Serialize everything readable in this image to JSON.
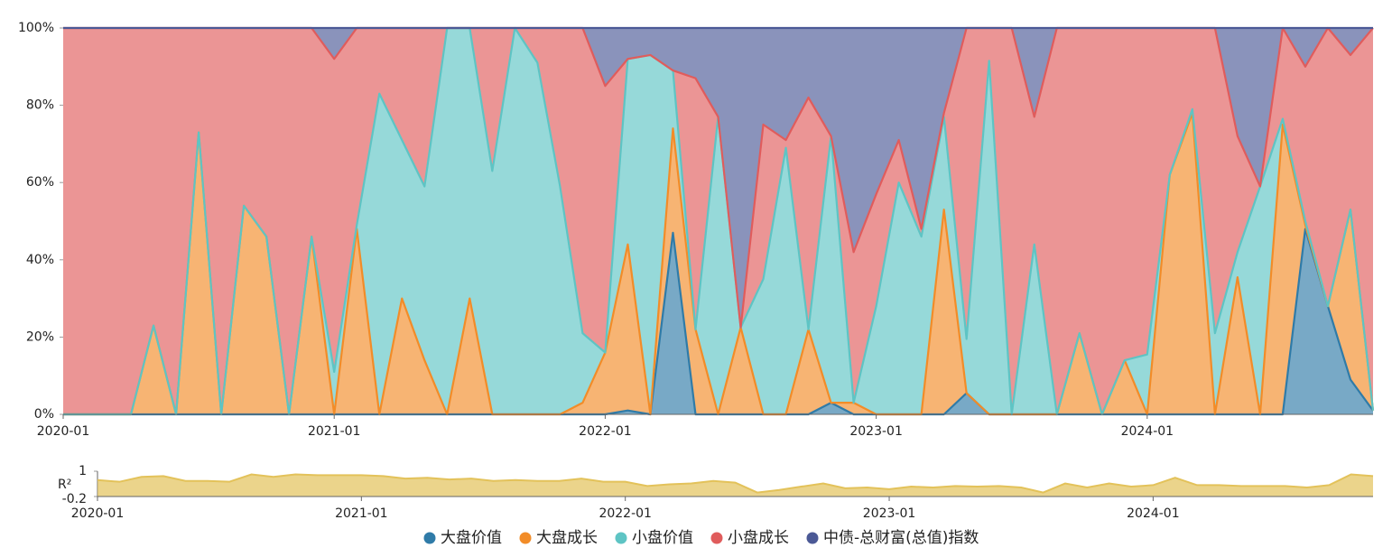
{
  "chart_data": [
    {
      "type": "stacked_area",
      "categories": [
        "2020-01",
        null,
        null,
        null,
        null,
        null,
        null,
        null,
        null,
        null,
        null,
        null,
        "2021-01",
        null,
        null,
        null,
        null,
        null,
        null,
        null,
        null,
        null,
        null,
        null,
        "2022-01",
        null,
        null,
        null,
        null,
        null,
        null,
        null,
        null,
        null,
        null,
        null,
        "2023-01",
        null,
        null,
        null,
        null,
        null,
        null,
        null,
        null,
        null,
        null,
        null,
        "2024-01",
        null,
        null,
        null,
        null,
        null,
        null,
        null,
        null,
        null,
        null
      ],
      "series": [
        {
          "name": "大盘价值",
          "color": "#2f7ba8",
          "values": [
            0,
            0,
            0,
            0,
            0,
            0,
            0,
            0,
            0,
            0,
            0,
            0,
            0,
            0,
            0,
            0,
            0,
            0,
            0,
            0,
            0,
            0,
            0,
            0,
            0,
            1,
            0,
            47,
            0,
            0,
            0,
            0,
            0,
            0,
            3,
            0,
            0,
            0,
            0,
            0,
            5.5,
            0,
            0,
            0,
            0,
            0,
            0,
            0,
            0,
            0,
            0,
            0,
            0,
            0,
            0,
            48,
            28,
            9,
            1
          ]
        },
        {
          "name": "大盘成长",
          "color": "#f28c28",
          "values": [
            0,
            0,
            0,
            0,
            23,
            0,
            73,
            0,
            54,
            46,
            0,
            46,
            0,
            48,
            0,
            30,
            14,
            0,
            30,
            0,
            0,
            0,
            0,
            3,
            16,
            43,
            0,
            27,
            22,
            0,
            22.5,
            0,
            0,
            22,
            0,
            3,
            0,
            0,
            0,
            53,
            0,
            0,
            0,
            0,
            0,
            21,
            0,
            14,
            0,
            62,
            78,
            0,
            35.5,
            0,
            75,
            1,
            0,
            44,
            0
          ]
        },
        {
          "name": "小盘价值",
          "color": "#5ec4c4",
          "values": [
            0,
            0,
            0,
            0,
            0,
            0,
            0,
            0,
            0,
            0,
            0,
            0,
            11,
            1,
            83,
            41,
            45,
            100,
            70,
            63,
            100,
            91,
            59,
            18,
            0,
            48,
            93,
            15,
            0,
            77,
            0,
            35,
            69,
            0,
            69,
            0,
            28,
            60,
            46,
            24,
            14,
            91.5,
            0,
            44,
            0,
            0,
            0,
            0,
            15.5,
            0,
            1,
            21,
            6.5,
            59,
            1.5,
            1,
            0,
            0,
            0
          ]
        },
        {
          "name": "小盘成长",
          "color": "#e05c5c",
          "values": [
            100,
            100,
            100,
            100,
            77,
            100,
            27,
            100,
            46,
            54,
            100,
            54,
            81,
            51,
            17,
            29,
            41,
            0,
            0,
            37,
            0,
            9,
            41,
            79,
            69,
            0,
            0,
            0,
            65,
            0,
            0,
            40,
            2,
            60,
            0,
            39,
            29,
            11,
            2,
            1,
            80.5,
            8.5,
            100,
            33,
            100,
            79,
            100,
            86,
            84.5,
            38,
            21,
            79,
            30,
            0,
            23.5,
            40,
            72,
            40,
            99
          ]
        },
        {
          "name": "中债-总财富(总值)指数",
          "color": "#4b5996",
          "values": [
            0,
            0,
            0,
            0,
            0,
            0,
            0,
            0,
            0,
            0,
            0,
            0,
            8,
            0,
            0,
            0,
            0,
            0,
            0,
            0,
            0,
            0,
            0,
            0,
            15,
            8,
            7,
            11,
            13,
            23,
            77.5,
            25,
            29,
            18,
            28,
            58,
            43,
            29,
            52,
            22,
            0,
            0,
            0,
            23,
            0,
            0,
            0,
            0,
            0,
            0,
            0,
            0,
            28,
            41,
            0,
            10,
            0,
            7,
            0
          ]
        }
      ],
      "ylim": [
        0,
        100
      ],
      "yticks": [
        {
          "value": 0,
          "label": "0%"
        },
        {
          "value": 20,
          "label": "20%"
        },
        {
          "value": 40,
          "label": "40%"
        },
        {
          "value": 60,
          "label": "60%"
        },
        {
          "value": 80,
          "label": "80%"
        },
        {
          "value": 100,
          "label": "100%"
        }
      ],
      "legend": "bottom"
    },
    {
      "type": "area",
      "y_label": "R²",
      "color": "#e3c25a",
      "categories": [
        "2020-01",
        null,
        null,
        null,
        null,
        null,
        null,
        null,
        null,
        null,
        null,
        null,
        "2021-01",
        null,
        null,
        null,
        null,
        null,
        null,
        null,
        null,
        null,
        null,
        null,
        "2022-01",
        null,
        null,
        null,
        null,
        null,
        null,
        null,
        null,
        null,
        null,
        null,
        "2023-01",
        null,
        null,
        null,
        null,
        null,
        null,
        null,
        null,
        null,
        null,
        null,
        "2024-01",
        null,
        null,
        null,
        null,
        null,
        null,
        null,
        null,
        null,
        null
      ],
      "values": [
        0.58,
        0.5,
        0.73,
        0.77,
        0.54,
        0.54,
        0.5,
        0.85,
        0.73,
        0.85,
        0.81,
        0.81,
        0.81,
        0.77,
        0.65,
        0.69,
        0.61,
        0.65,
        0.54,
        0.58,
        0.54,
        0.54,
        0.65,
        0.5,
        0.5,
        0.3,
        0.38,
        0.42,
        0.54,
        0.46,
        -0.01,
        0.11,
        0.27,
        0.42,
        0.19,
        0.23,
        0.15,
        0.27,
        0.23,
        0.3,
        0.27,
        0.3,
        0.23,
        -0.01,
        0.42,
        0.23,
        0.42,
        0.27,
        0.34,
        0.69,
        0.34,
        0.34,
        0.3,
        0.3,
        0.3,
        0.23,
        0.34,
        0.85,
        0.77
      ],
      "ylim": [
        -0.2,
        1
      ],
      "yticks": [
        -0.2,
        1
      ]
    }
  ]
}
